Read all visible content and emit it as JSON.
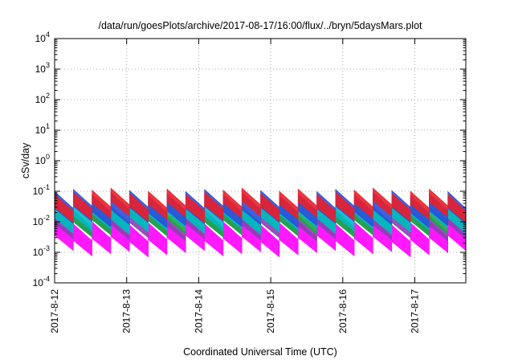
{
  "chart_data": {
    "type": "line",
    "title": "/data/run/goesPlots/archive/2017-08-17/16:00/flux/../bryn/5daysMars.plot",
    "xlabel": "Coordinated Universal Time (UTC)",
    "ylabel": "cSv/day",
    "yscale": "log",
    "ylim": [
      0.0001,
      10000
    ],
    "yticks": [
      {
        "value": 0.0001,
        "base": "10",
        "exp": "-4"
      },
      {
        "value": 0.001,
        "base": "10",
        "exp": "-3"
      },
      {
        "value": 0.01,
        "base": "10",
        "exp": "-2"
      },
      {
        "value": 0.1,
        "base": "10",
        "exp": "-1"
      },
      {
        "value": 1,
        "base": "10",
        "exp": "0"
      },
      {
        "value": 10,
        "base": "10",
        "exp": "1"
      },
      {
        "value": 100,
        "base": "10",
        "exp": "2"
      },
      {
        "value": 1000,
        "base": "10",
        "exp": "3"
      },
      {
        "value": 10000,
        "base": "10",
        "exp": "4"
      }
    ],
    "xlim": [
      "2017-08-12",
      "2017-08-17T17:00"
    ],
    "xticks": [
      "2017-8-12",
      "2017-8-13",
      "2017-8-14",
      "2017-8-15",
      "2017-8-16",
      "2017-8-17"
    ],
    "grid": true,
    "legend": "none",
    "series": [
      {
        "color": "#e8202a",
        "values": [
          0.1,
          0.012
        ]
      },
      {
        "color": "#2b4fd8",
        "values": [
          0.09,
          0.008
        ]
      },
      {
        "color": "#00b8c8",
        "values": [
          0.04,
          0.005
        ]
      },
      {
        "color": "#18a848",
        "values": [
          0.03,
          0.004
        ]
      },
      {
        "color": "#8c3fb0",
        "values": [
          0.02,
          0.003
        ]
      },
      {
        "color": "#ff00ff",
        "values": [
          0.01,
          0.0009
        ]
      }
    ]
  }
}
